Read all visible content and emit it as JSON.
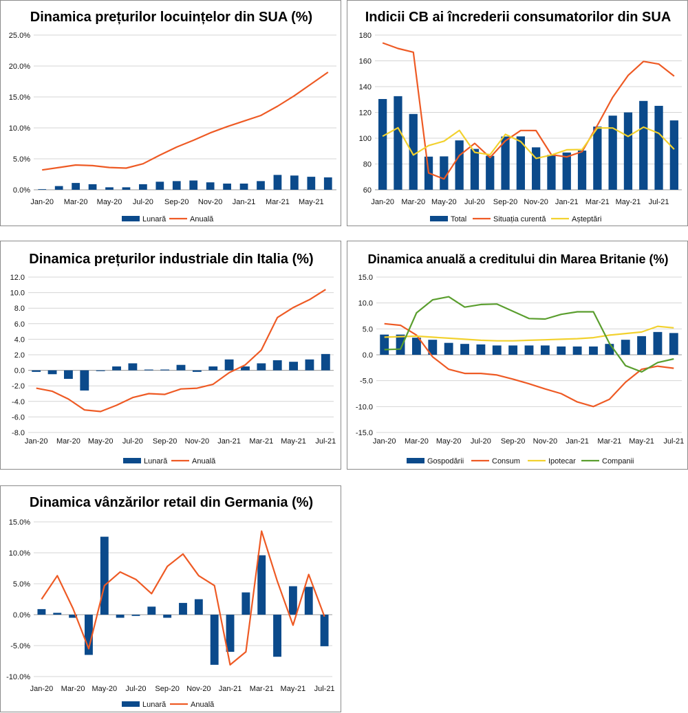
{
  "colors": {
    "bar": "#0b4a8b",
    "red": "#ee5a24",
    "yellow": "#f2d12e",
    "green": "#5a9e2e"
  },
  "chart_data": [
    {
      "type": "bar+line",
      "title": "Dinamica prețurilor locuințelor din SUA (%)",
      "x": [
        "Jan-20",
        "Feb-20",
        "Mar-20",
        "Apr-20",
        "May-20",
        "Jun-20",
        "Jul-20",
        "Aug-20",
        "Sep-20",
        "Oct-20",
        "Nov-20",
        "Dec-20",
        "Jan-21",
        "Feb-21",
        "Mar-21",
        "Apr-21",
        "May-21",
        "Jun-21"
      ],
      "xticks": [
        "Jan-20",
        "Mar-20",
        "May-20",
        "Jul-20",
        "Sep-20",
        "Nov-20",
        "Jan-21",
        "Mar-21",
        "May-21"
      ],
      "yticks": [
        "0.0%",
        "5.0%",
        "10.0%",
        "15.0%",
        "20.0%",
        "25.0%"
      ],
      "ylim": [
        0,
        25
      ],
      "series": [
        {
          "name": "Lunară",
          "kind": "bar",
          "color": "#0b4a8b",
          "values": [
            0.1,
            0.6,
            1.1,
            0.9,
            0.4,
            0.4,
            0.9,
            1.3,
            1.4,
            1.5,
            1.2,
            1.0,
            1.0,
            1.4,
            2.4,
            2.3,
            2.1,
            2.0
          ]
        },
        {
          "name": "Anuală",
          "kind": "line",
          "color": "#ee5a24",
          "values": [
            3.2,
            3.6,
            4.0,
            3.9,
            3.6,
            3.5,
            4.2,
            5.6,
            6.9,
            8.0,
            9.2,
            10.2,
            11.1,
            12.0,
            13.5,
            15.2,
            17.1,
            19.0
          ]
        }
      ]
    },
    {
      "type": "bar+line",
      "title": "Indicii CB ai încrederii consumatorilor din SUA",
      "x": [
        "Jan-20",
        "Feb-20",
        "Mar-20",
        "Apr-20",
        "May-20",
        "Jun-20",
        "Jul-20",
        "Aug-20",
        "Sep-20",
        "Oct-20",
        "Nov-20",
        "Dec-20",
        "Jan-21",
        "Feb-21",
        "Mar-21",
        "Apr-21",
        "May-21",
        "Jun-21",
        "Jul-21",
        "Aug-21"
      ],
      "xticks": [
        "Jan-20",
        "Mar-20",
        "May-20",
        "Jul-20",
        "Sep-20",
        "Nov-20",
        "Jan-21",
        "Mar-21",
        "May-21",
        "Jul-21"
      ],
      "yticks": [
        "60",
        "80",
        "100",
        "120",
        "140",
        "160",
        "180"
      ],
      "ylim": [
        60,
        180
      ],
      "series": [
        {
          "name": "Total",
          "kind": "bar",
          "color": "#0b4a8b",
          "values": [
            130.4,
            132.6,
            118.8,
            85.7,
            85.9,
            98.3,
            91.7,
            86.3,
            101.3,
            101.4,
            92.9,
            87.1,
            88.9,
            90.4,
            109.0,
            117.5,
            120.0,
            128.9,
            125.1,
            113.8
          ]
        },
        {
          "name": "Situația curentă",
          "kind": "line",
          "color": "#ee5a24",
          "values": [
            173.9,
            169.6,
            166.7,
            73.0,
            68.4,
            86.6,
            96.0,
            85.0,
            98.0,
            106.0,
            105.9,
            87.2,
            85.5,
            89.6,
            110.1,
            131.9,
            148.7,
            159.6,
            157.5,
            148.1
          ]
        },
        {
          "name": "Așteptări",
          "kind": "line",
          "color": "#f2d12e",
          "values": [
            101.5,
            108.1,
            87.0,
            94.3,
            97.7,
            106.1,
            89.0,
            87.2,
            103.0,
            97.4,
            84.3,
            87.0,
            91.0,
            91.2,
            108.0,
            107.9,
            101.4,
            108.6,
            103.8,
            91.4
          ]
        }
      ]
    },
    {
      "type": "bar+line",
      "title": "Dinamica prețurilor industriale din Italia (%)",
      "x": [
        "Jan-20",
        "Feb-20",
        "Mar-20",
        "Apr-20",
        "May-20",
        "Jun-20",
        "Jul-20",
        "Aug-20",
        "Sep-20",
        "Oct-20",
        "Nov-20",
        "Dec-20",
        "Jan-21",
        "Feb-21",
        "Mar-21",
        "Apr-21",
        "May-21",
        "Jun-21",
        "Jul-21"
      ],
      "xticks": [
        "Jan-20",
        "Mar-20",
        "May-20",
        "Jul-20",
        "Sep-20",
        "Nov-20",
        "Jan-21",
        "Mar-21",
        "May-21",
        "Jul-21"
      ],
      "yticks": [
        "-8.0",
        "-6.0",
        "-4.0",
        "-2.0",
        "0.0",
        "2.0",
        "4.0",
        "6.0",
        "8.0",
        "10.0",
        "12.0"
      ],
      "ylim": [
        -8,
        12
      ],
      "series": [
        {
          "name": "Lunară",
          "kind": "bar",
          "color": "#0b4a8b",
          "values": [
            -0.2,
            -0.5,
            -1.1,
            -2.6,
            -0.1,
            0.5,
            0.9,
            0.1,
            0.1,
            0.7,
            -0.2,
            0.5,
            1.4,
            0.5,
            0.9,
            1.3,
            1.1,
            1.4,
            2.1
          ]
        },
        {
          "name": "Anuală",
          "kind": "line",
          "color": "#ee5a24",
          "values": [
            -2.3,
            -2.7,
            -3.7,
            -5.1,
            -5.3,
            -4.5,
            -3.5,
            -3.0,
            -3.1,
            -2.4,
            -2.3,
            -1.8,
            -0.3,
            0.7,
            2.6,
            6.8,
            8.1,
            9.1,
            10.4
          ]
        }
      ]
    },
    {
      "type": "bar+line",
      "title": "Dinamica anuală a creditului din Marea Britanie (%)",
      "x": [
        "Jan-20",
        "Feb-20",
        "Mar-20",
        "Apr-20",
        "May-20",
        "Jun-20",
        "Jul-20",
        "Aug-20",
        "Sep-20",
        "Oct-20",
        "Nov-20",
        "Dec-20",
        "Jan-21",
        "Feb-21",
        "Mar-21",
        "Apr-21",
        "May-21",
        "Jun-21",
        "Jul-21"
      ],
      "xticks": [
        "Jan-20",
        "Mar-20",
        "May-20",
        "Jul-20",
        "Sep-20",
        "Nov-20",
        "Jan-21",
        "Mar-21",
        "May-21",
        "Jul-21"
      ],
      "yticks": [
        "-15.0",
        "-10.0",
        "-5.0",
        "0.0",
        "5.0",
        "10.0",
        "15.0"
      ],
      "ylim": [
        -15,
        15
      ],
      "series": [
        {
          "name": "Gospodării",
          "kind": "bar",
          "color": "#0b4a8b",
          "values": [
            3.9,
            3.9,
            3.3,
            2.9,
            2.3,
            2.1,
            2.0,
            1.8,
            1.8,
            1.8,
            1.8,
            1.6,
            1.6,
            1.6,
            2.1,
            2.9,
            3.6,
            4.4,
            4.2
          ]
        },
        {
          "name": "Consum",
          "kind": "line",
          "color": "#ee5a24",
          "values": [
            6.0,
            5.7,
            3.8,
            -0.4,
            -2.8,
            -3.6,
            -3.6,
            -3.9,
            -4.7,
            -5.6,
            -6.6,
            -7.5,
            -9.1,
            -10.0,
            -8.6,
            -5.3,
            -2.8,
            -2.2,
            -2.6
          ]
        },
        {
          "name": "Ipotecar",
          "kind": "line",
          "color": "#f2d12e",
          "values": [
            3.4,
            3.5,
            3.6,
            3.4,
            3.2,
            3.0,
            2.8,
            2.7,
            2.7,
            2.8,
            2.9,
            3.0,
            3.1,
            3.3,
            3.8,
            4.1,
            4.4,
            5.5,
            5.2
          ]
        },
        {
          "name": "Companii",
          "kind": "line",
          "color": "#5a9e2e",
          "values": [
            1.0,
            1.1,
            8.1,
            10.6,
            11.2,
            9.2,
            9.7,
            9.8,
            8.4,
            7.0,
            6.9,
            7.8,
            8.3,
            8.3,
            2.2,
            -2.1,
            -3.3,
            -1.5,
            -0.8
          ]
        }
      ]
    },
    {
      "type": "bar+line",
      "title": "Dinamica vânzărilor retail din Germania (%)",
      "x": [
        "Jan-20",
        "Feb-20",
        "Mar-20",
        "Apr-20",
        "May-20",
        "Jun-20",
        "Jul-20",
        "Aug-20",
        "Sep-20",
        "Oct-20",
        "Nov-20",
        "Dec-20",
        "Jan-21",
        "Feb-21",
        "Mar-21",
        "Apr-21",
        "May-21",
        "Jun-21",
        "Jul-21"
      ],
      "xticks": [
        "Jan-20",
        "Mar-20",
        "May-20",
        "Jul-20",
        "Sep-20",
        "Nov-20",
        "Jan-21",
        "Mar-21",
        "May-21",
        "Jul-21"
      ],
      "yticks": [
        "-10.0%",
        "-5.0%",
        "0.0%",
        "5.0%",
        "10.0%",
        "15.0%"
      ],
      "ylim": [
        -10,
        15
      ],
      "series": [
        {
          "name": "Lunară",
          "kind": "bar",
          "color": "#0b4a8b",
          "values": [
            0.9,
            0.3,
            -0.5,
            -6.5,
            12.6,
            -0.5,
            -0.2,
            1.3,
            -0.5,
            1.9,
            2.5,
            -8.1,
            -6.0,
            3.6,
            9.6,
            -6.8,
            4.6,
            4.5,
            -5.1
          ]
        },
        {
          "name": "Anuală",
          "kind": "line",
          "color": "#ee5a24",
          "values": [
            2.5,
            6.3,
            1.0,
            -5.5,
            4.7,
            6.9,
            5.7,
            3.4,
            7.8,
            9.8,
            6.3,
            4.7,
            -8.1,
            -6.0,
            13.5,
            5.4,
            -1.7,
            6.5,
            -0.3
          ]
        }
      ]
    }
  ]
}
